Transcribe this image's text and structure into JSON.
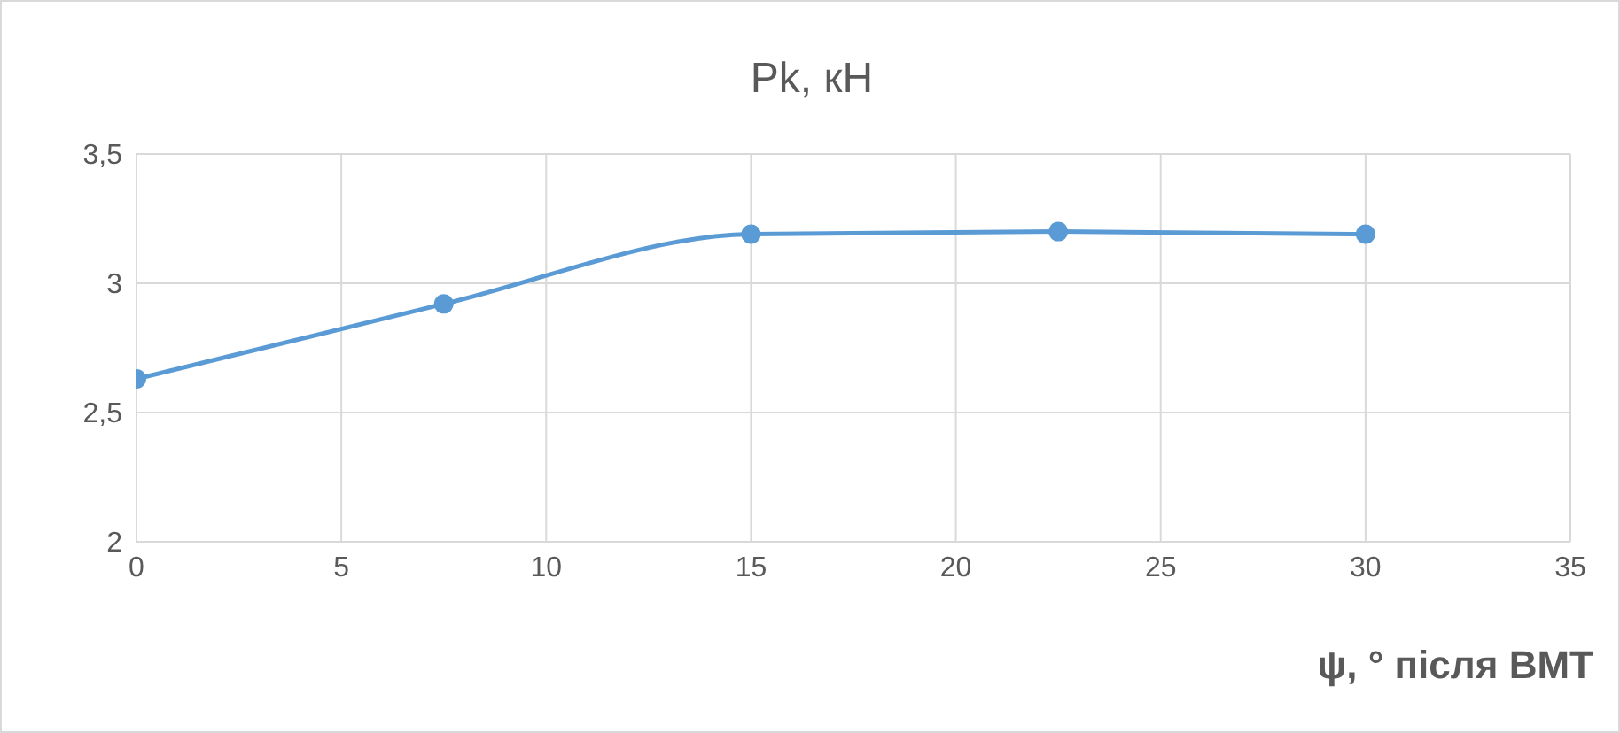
{
  "chart_data": {
    "type": "line",
    "title": "Pk, кН",
    "xlabel": "ψ,  ° після ВМТ",
    "x": [
      0,
      7.5,
      15,
      22.5,
      30
    ],
    "series": [
      {
        "color": "#5b9bd5",
        "values": [
          2.63,
          2.92,
          3.19,
          3.2,
          3.19
        ]
      }
    ],
    "xlim": [
      0,
      35
    ],
    "xticks": [
      0,
      5,
      10,
      15,
      20,
      25,
      30,
      35
    ],
    "ylim": [
      2,
      3.5
    ],
    "yticks": [
      2,
      {
        "value": 2.5,
        "label": "2,5"
      },
      3,
      {
        "value": 3.5,
        "label": "3,5"
      }
    ],
    "grid": true,
    "marker": "circle"
  }
}
